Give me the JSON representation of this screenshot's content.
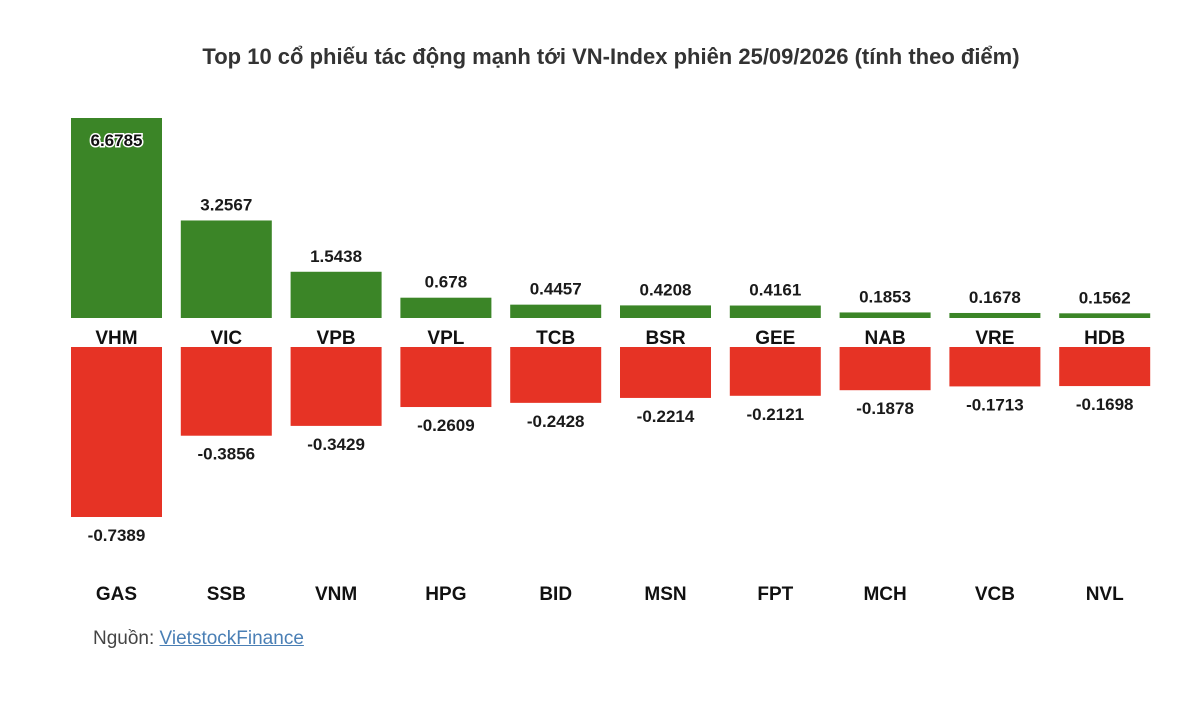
{
  "chart_data": {
    "type": "bar",
    "title": "Top 10 cổ phiếu tác động mạnh tới VN-Index phiên 25/09/2026 (tính theo điểm)",
    "series": [
      {
        "name": "",
        "color": "#3b8527",
        "categories": [
          "VHM",
          "VIC",
          "VPB",
          "VPL",
          "TCB",
          "BSR",
          "GEE",
          "NAB",
          "VRE",
          "HDB"
        ],
        "values": [
          6.6785,
          3.2567,
          1.5438,
          0.678,
          0.4457,
          0.4208,
          0.4161,
          0.1853,
          0.1678,
          0.1562
        ],
        "value_labels": [
          "6.6785",
          "3.2567",
          "1.5438",
          "0.678",
          "0.4457",
          "0.4208",
          "0.4161",
          "0.1853",
          "0.1678",
          "0.1562"
        ]
      },
      {
        "name": "",
        "color": "#e63325",
        "categories": [
          "GAS",
          "SSB",
          "VNM",
          "HPG",
          "BID",
          "MSN",
          "FPT",
          "MCH",
          "VCB",
          "NVL"
        ],
        "values": [
          -0.7389,
          -0.3856,
          -0.3429,
          -0.2609,
          -0.2428,
          -0.2214,
          -0.2121,
          -0.1878,
          -0.1713,
          -0.1698
        ],
        "value_labels": [
          "-0.7389",
          "-0.3856",
          "-0.3429",
          "-0.2609",
          "-0.2428",
          "-0.2214",
          "-0.2121",
          "-0.1878",
          "-0.1713",
          "-0.1698"
        ]
      }
    ],
    "xlabel": "",
    "ylabel": "",
    "grid": false,
    "legend": "none"
  },
  "source": {
    "prefix": "Nguồn: ",
    "link_text": "VietstockFinance"
  }
}
